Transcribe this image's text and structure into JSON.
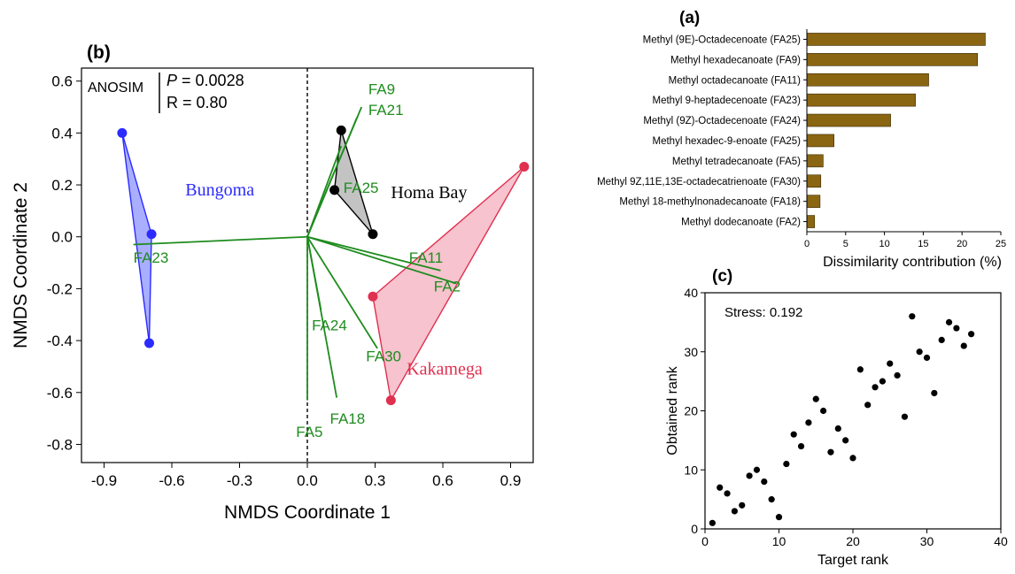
{
  "chart_data": [
    {
      "id": "b",
      "panel_label": "(b)",
      "type": "scatter",
      "xlabel": "NMDS Coordinate 1",
      "ylabel": "NMDS Coordinate 2",
      "xlim": [
        -1.0,
        1.0
      ],
      "ylim": [
        -0.87,
        0.65
      ],
      "xticks": [
        -0.9,
        -0.6,
        -0.3,
        0.0,
        0.3,
        0.6,
        0.9
      ],
      "yticks": [
        -0.8,
        -0.6,
        -0.4,
        -0.2,
        0.0,
        0.2,
        0.4,
        0.6
      ],
      "annotation": {
        "method": "ANOSIM",
        "p_label": "P",
        "p_value": "= 0.0028",
        "r_text": "R = 0.80"
      },
      "groups": [
        {
          "name": "Bungoma",
          "color": "#2b2bff",
          "fill": "#9aa0ff",
          "points": [
            [
              -0.82,
              0.4
            ],
            [
              -0.69,
              0.01
            ],
            [
              -0.7,
              -0.41
            ]
          ],
          "label_at": [
            -0.54,
            0.18
          ]
        },
        {
          "name": "Homa Bay",
          "color": "#000000",
          "fill": "#b8b8b8",
          "points": [
            [
              0.15,
              0.41
            ],
            [
              0.12,
              0.18
            ],
            [
              0.29,
              0.01
            ]
          ],
          "label_at": [
            0.37,
            0.17
          ]
        },
        {
          "name": "Kakamega",
          "color": "#e03050",
          "fill": "#f4b9c6",
          "points": [
            [
              0.96,
              0.27
            ],
            [
              0.29,
              -0.23
            ],
            [
              0.37,
              -0.63
            ]
          ],
          "label_at": [
            0.44,
            -0.51
          ]
        }
      ],
      "vectors": [
        {
          "label": "FA9",
          "end": [
            0.24,
            0.5
          ],
          "label_at": [
            0.27,
            0.57
          ]
        },
        {
          "label": "FA21",
          "end": [
            0.22,
            0.46
          ],
          "label_at": [
            0.27,
            0.49
          ]
        },
        {
          "label": "FA25",
          "end": [
            0.15,
            0.35
          ],
          "label_at": [
            0.16,
            0.19
          ]
        },
        {
          "label": "FA23",
          "end": [
            -0.77,
            -0.03
          ],
          "label_at": [
            -0.77,
            -0.08
          ]
        },
        {
          "label": "FA11",
          "end": [
            0.59,
            -0.13
          ],
          "label_at": [
            0.45,
            -0.08
          ]
        },
        {
          "label": "FA2",
          "end": [
            0.66,
            -0.18
          ],
          "label_at": [
            0.56,
            -0.19
          ]
        },
        {
          "label": "FA24",
          "end": [
            0.06,
            -0.28
          ],
          "label_at": [
            0.02,
            -0.34
          ]
        },
        {
          "label": "FA30",
          "end": [
            0.31,
            -0.43
          ],
          "label_at": [
            0.26,
            -0.46
          ]
        },
        {
          "label": "FA18",
          "end": [
            0.13,
            -0.62
          ],
          "label_at": [
            0.1,
            -0.7
          ]
        },
        {
          "label": "FA5",
          "end": [
            0.0,
            -0.63
          ],
          "label_at": [
            -0.05,
            -0.75
          ]
        }
      ],
      "vector_color": "#1e8c1e",
      "reference_line": {
        "x": 0.0,
        "style": "dashed"
      }
    },
    {
      "id": "a",
      "panel_label": "(a)",
      "type": "bar",
      "orientation": "horizontal",
      "categories": [
        "Methyl (9E)-Octadecenoate (FA25)",
        "Methyl hexadecanoate (FA9)",
        "Methyl octadecanoate (FA11)",
        "Methyl 9-heptadecenoate (FA23)",
        "Methyl (9Z)-Octadecenoate (FA24)",
        "Methyl hexadec-9-enoate (FA25)",
        "Methyl tetradecanoate (FA5)",
        "Methyl 9Z,11E,13E-octadecatrienoate (FA30)",
        "Methyl 18-methylnonadecanoate (FA18)",
        "Methyl dodecanoate (FA2)"
      ],
      "values": [
        23.0,
        22.0,
        15.7,
        14.0,
        10.8,
        3.5,
        2.1,
        1.8,
        1.7,
        1.0
      ],
      "xlabel": "Dissimilarity contribution (%)",
      "xlim": [
        0,
        25
      ],
      "xticks": [
        0,
        5,
        10,
        15,
        20,
        25
      ],
      "bar_color": "#8a6512"
    },
    {
      "id": "c",
      "panel_label": "(c)",
      "type": "scatter",
      "xlabel": "Target rank",
      "ylabel": "Obtained rank",
      "xlim": [
        0,
        40
      ],
      "ylim": [
        0,
        40
      ],
      "xticks": [
        0,
        10,
        20,
        30,
        40
      ],
      "yticks": [
        0,
        10,
        20,
        30,
        40
      ],
      "annotation": "Stress: 0.192",
      "x": [
        1,
        2,
        3,
        4,
        5,
        6,
        7,
        8,
        9,
        10,
        11,
        12,
        13,
        14,
        15,
        16,
        17,
        18,
        19,
        20,
        21,
        22,
        23,
        24,
        25,
        26,
        27,
        28,
        29,
        30,
        31,
        32,
        33,
        34,
        35,
        36
      ],
      "y": [
        1,
        7,
        6,
        3,
        4,
        9,
        10,
        8,
        5,
        2,
        11,
        16,
        14,
        18,
        22,
        20,
        13,
        17,
        15,
        12,
        27,
        21,
        24,
        25,
        28,
        26,
        19,
        36,
        30,
        29,
        23,
        32,
        35,
        34,
        31,
        33
      ]
    }
  ]
}
